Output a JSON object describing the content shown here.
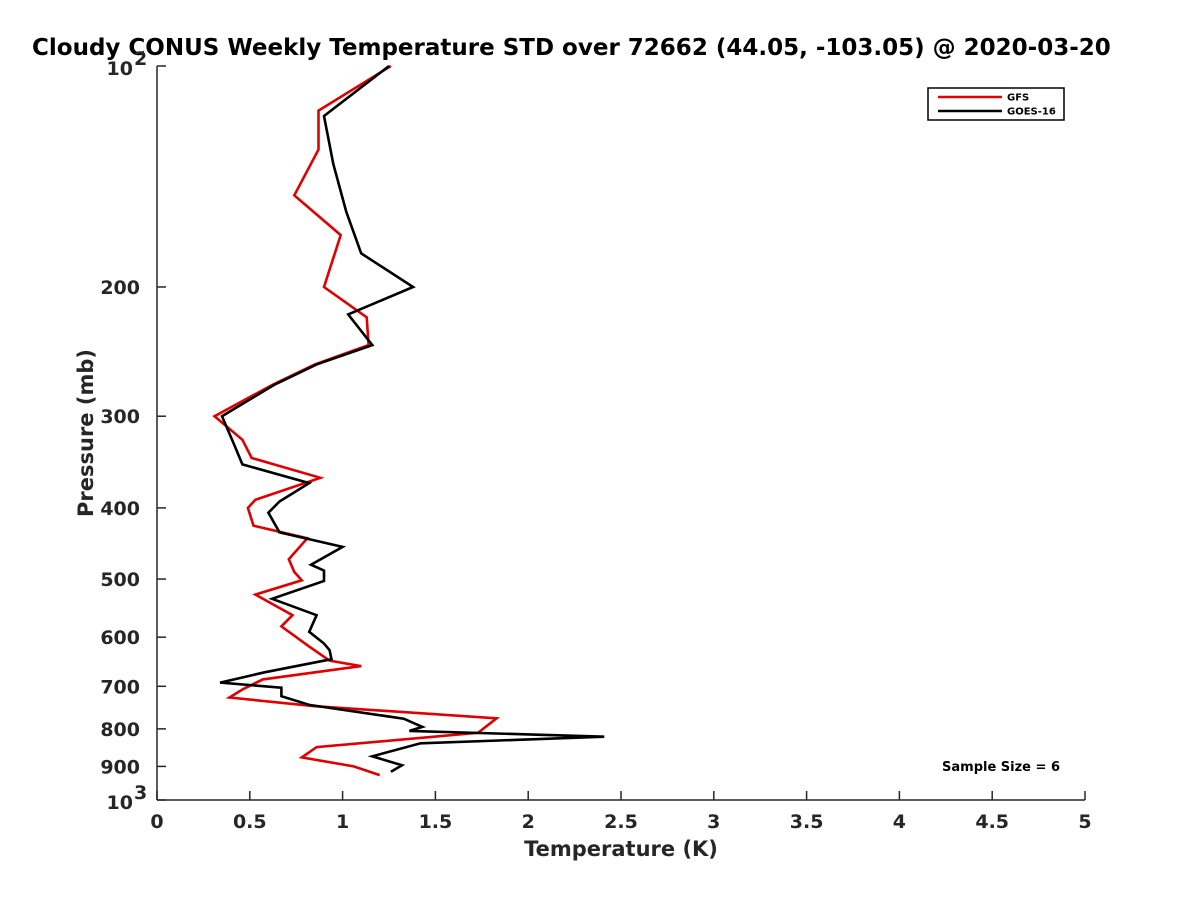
{
  "chart_data": {
    "type": "line",
    "title": "Cloudy CONUS Weekly Temperature STD over 72662 (44.05, -103.05) @ 2020-03-20",
    "xlabel": "Temperature (K)",
    "ylabel": "Pressure (mb)",
    "xlim": [
      0,
      5
    ],
    "ylim": [
      100,
      1000
    ],
    "y_scale": "log",
    "y_reversed": true,
    "x_ticks": [
      {
        "value": 0,
        "label": "0"
      },
      {
        "value": 0.5,
        "label": "0.5"
      },
      {
        "value": 1,
        "label": "1"
      },
      {
        "value": 1.5,
        "label": "1.5"
      },
      {
        "value": 2,
        "label": "2"
      },
      {
        "value": 2.5,
        "label": "2.5"
      },
      {
        "value": 3,
        "label": "3"
      },
      {
        "value": 3.5,
        "label": "3.5"
      },
      {
        "value": 4,
        "label": "4"
      },
      {
        "value": 4.5,
        "label": "4.5"
      },
      {
        "value": 5,
        "label": "5"
      }
    ],
    "y_ticks": [
      {
        "value": 100,
        "base": "10",
        "exp": "2"
      },
      {
        "value": 200,
        "label": "200"
      },
      {
        "value": 300,
        "label": "300"
      },
      {
        "value": 400,
        "label": "400"
      },
      {
        "value": 500,
        "label": "500"
      },
      {
        "value": 600,
        "label": "600"
      },
      {
        "value": 700,
        "label": "700"
      },
      {
        "value": 800,
        "label": "800"
      },
      {
        "value": 900,
        "label": "900"
      },
      {
        "value": 1000,
        "base": "10",
        "exp": "3"
      }
    ],
    "grid": false,
    "legend_position": "top-right",
    "annotation": "Sample Size = 6",
    "series": [
      {
        "name": "GFS",
        "color": "#e00000",
        "points": [
          [
            1.26,
            100
          ],
          [
            0.87,
            115
          ],
          [
            0.87,
            130
          ],
          [
            0.74,
            150
          ],
          [
            0.99,
            170
          ],
          [
            0.9,
            200
          ],
          [
            1.13,
            220
          ],
          [
            1.14,
            240
          ],
          [
            0.85,
            255
          ],
          [
            0.62,
            272
          ],
          [
            0.31,
            300
          ],
          [
            0.46,
            323
          ],
          [
            0.51,
            342
          ],
          [
            0.88,
            364
          ],
          [
            0.53,
            390
          ],
          [
            0.49,
            400
          ],
          [
            0.52,
            423
          ],
          [
            0.81,
            440
          ],
          [
            0.71,
            470
          ],
          [
            0.74,
            489
          ],
          [
            0.78,
            502
          ],
          [
            0.53,
            525
          ],
          [
            0.73,
            560
          ],
          [
            0.67,
            580
          ],
          [
            0.82,
            618
          ],
          [
            0.93,
            646
          ],
          [
            1.1,
            657
          ],
          [
            0.57,
            685
          ],
          [
            0.46,
            707
          ],
          [
            0.39,
            725
          ],
          [
            0.85,
            745
          ],
          [
            1.83,
            774
          ],
          [
            1.73,
            810
          ],
          [
            0.86,
            847
          ],
          [
            0.78,
            875
          ],
          [
            1.06,
            900
          ],
          [
            1.2,
            925
          ]
        ]
      },
      {
        "name": "GOES-16",
        "color": "#000000",
        "points": [
          [
            1.25,
            100
          ],
          [
            0.9,
            117
          ],
          [
            0.95,
            136
          ],
          [
            1.02,
            158
          ],
          [
            1.1,
            180
          ],
          [
            1.38,
            200
          ],
          [
            1.03,
            218
          ],
          [
            1.16,
            240
          ],
          [
            0.86,
            255
          ],
          [
            0.63,
            272
          ],
          [
            0.35,
            300
          ],
          [
            0.42,
            330
          ],
          [
            0.46,
            349
          ],
          [
            0.82,
            370
          ],
          [
            0.66,
            392
          ],
          [
            0.6,
            406
          ],
          [
            0.66,
            432
          ],
          [
            1.0,
            452
          ],
          [
            0.83,
            478
          ],
          [
            0.9,
            487
          ],
          [
            0.9,
            503
          ],
          [
            0.62,
            532
          ],
          [
            0.86,
            560
          ],
          [
            0.82,
            590
          ],
          [
            0.9,
            612
          ],
          [
            0.93,
            625
          ],
          [
            0.94,
            643
          ],
          [
            0.58,
            670
          ],
          [
            0.34,
            692
          ],
          [
            0.67,
            703
          ],
          [
            0.67,
            722
          ],
          [
            0.82,
            742
          ],
          [
            1.33,
            775
          ],
          [
            1.43,
            795
          ],
          [
            1.36,
            805
          ],
          [
            2.41,
            820
          ],
          [
            1.42,
            837
          ],
          [
            1.16,
            872
          ],
          [
            1.32,
            897
          ],
          [
            1.26,
            915
          ]
        ]
      }
    ]
  }
}
